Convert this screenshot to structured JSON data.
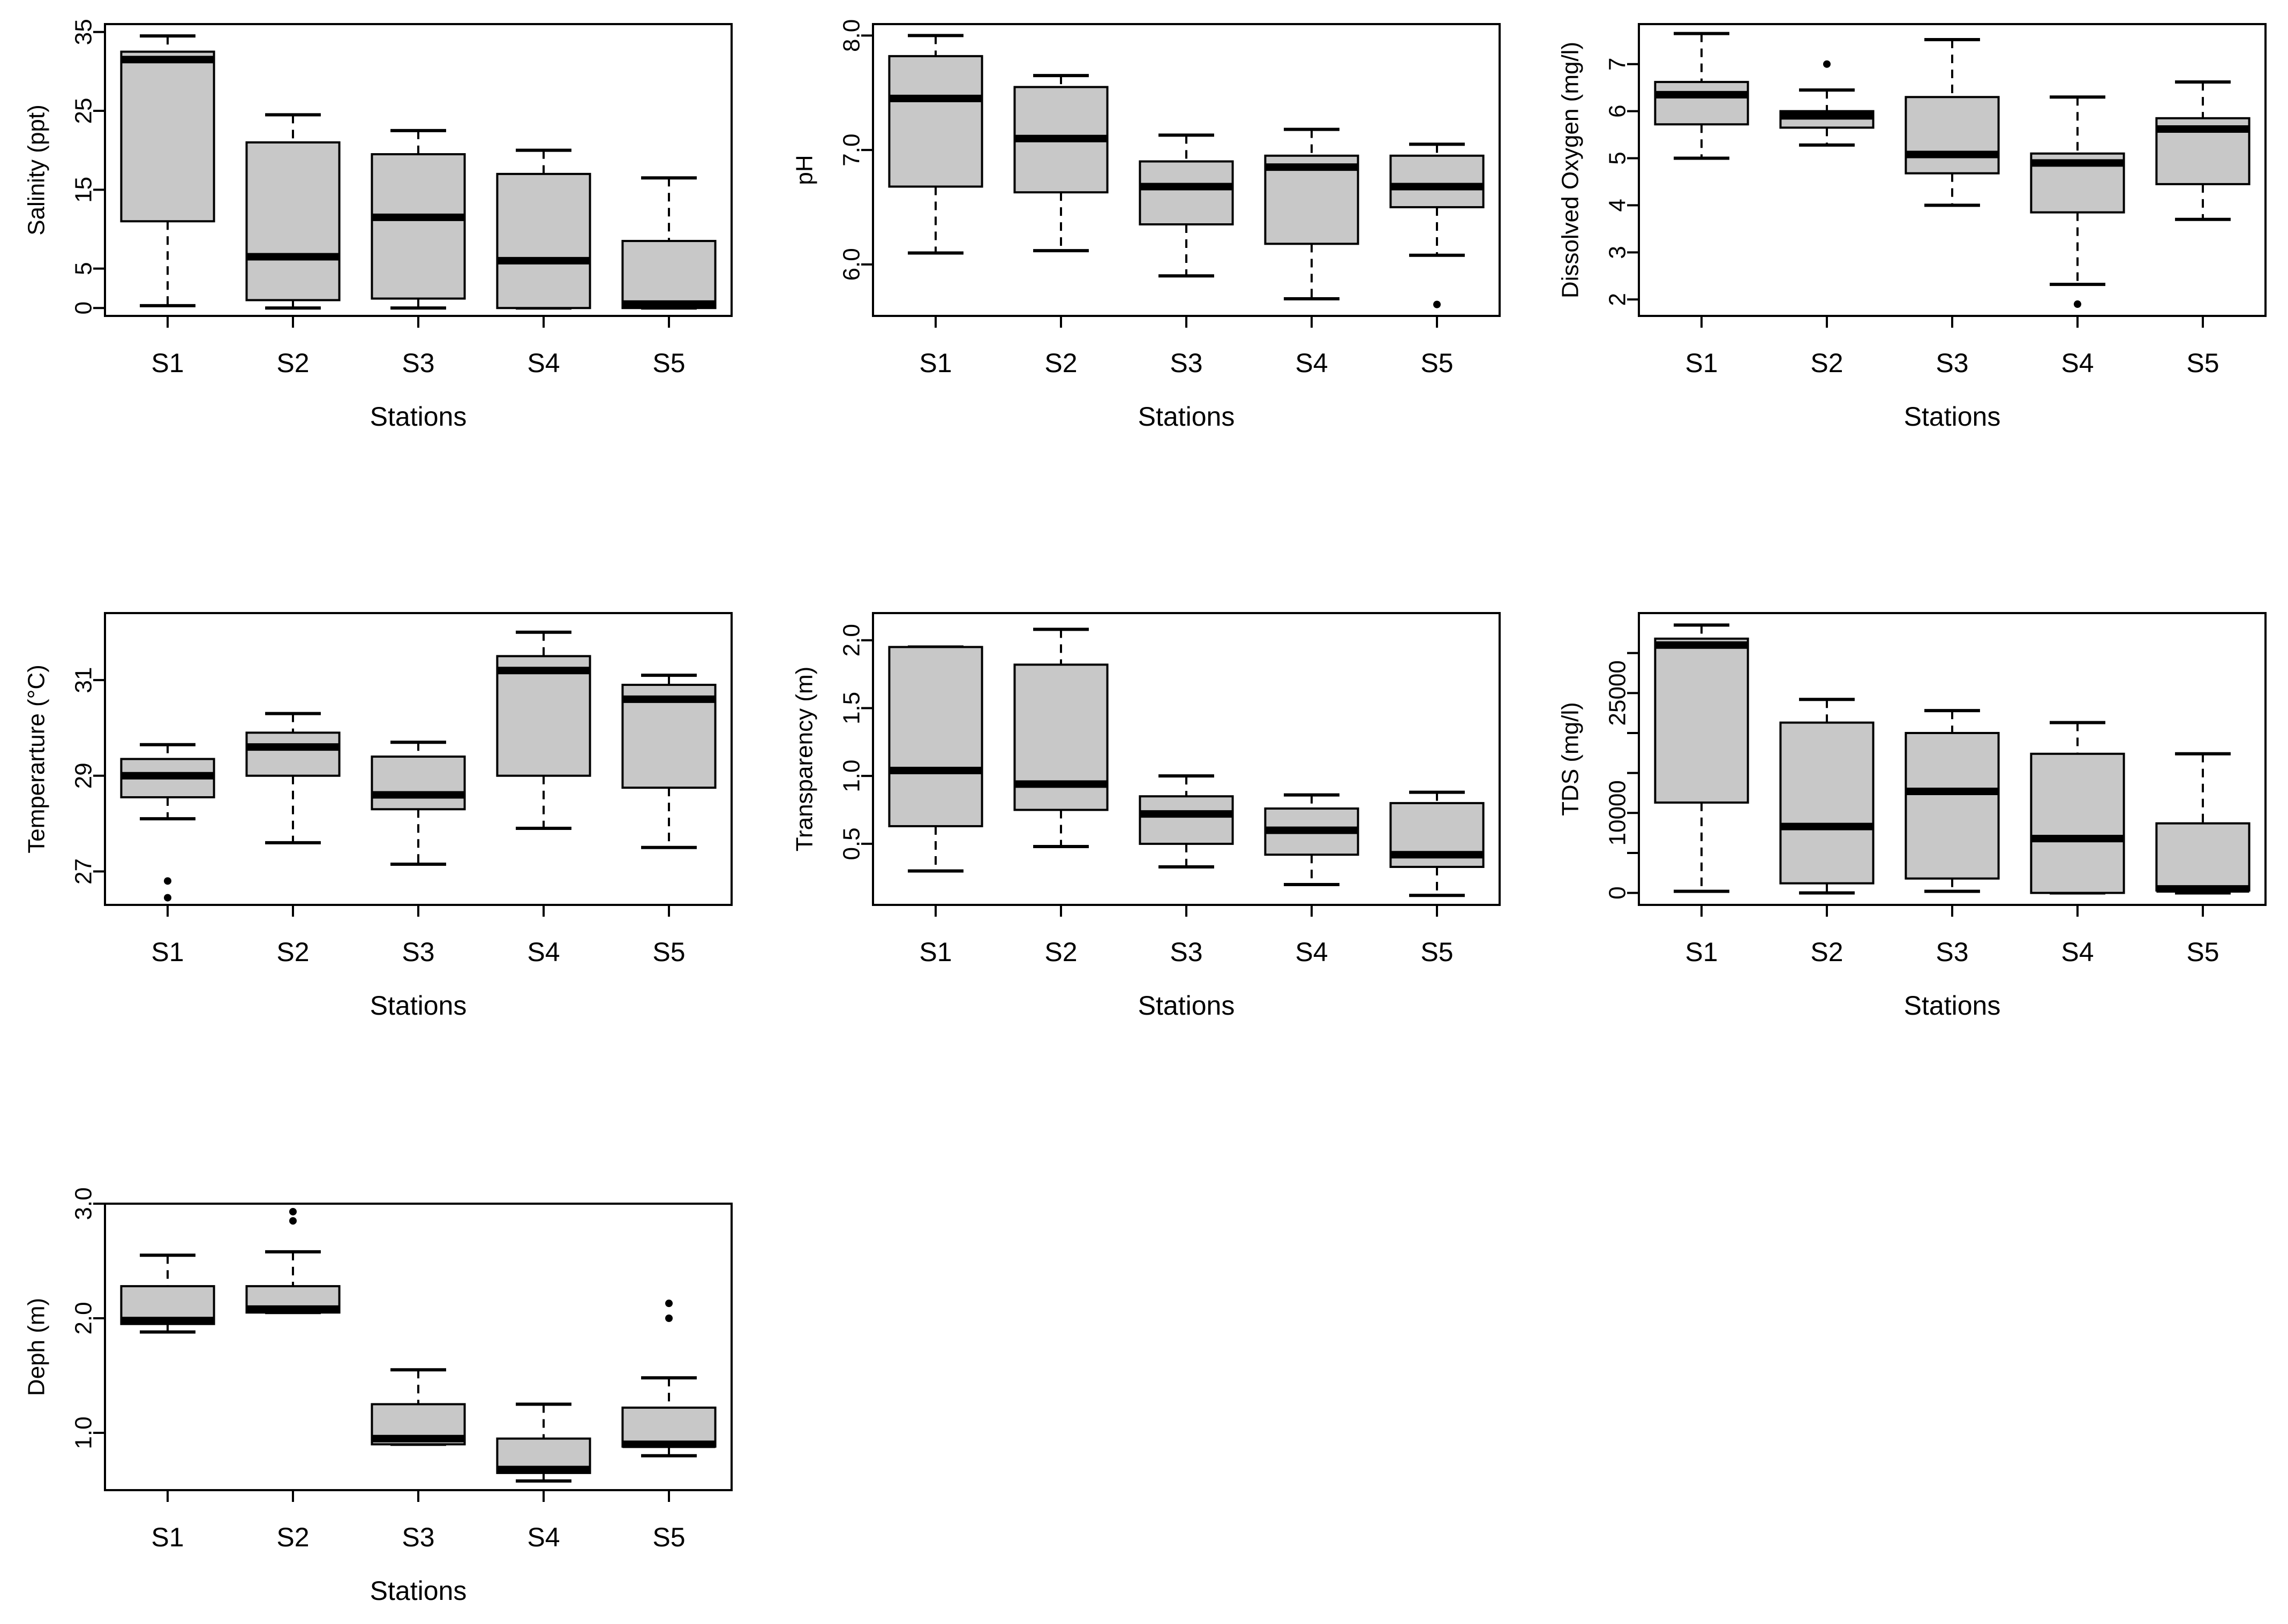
{
  "colors": {
    "box_fill": "#c8c8c8",
    "median": "#000000",
    "stroke": "#000000",
    "background": "#ffffff"
  },
  "chart_data": [
    {
      "type": "boxplot",
      "title": "",
      "xlabel": "Stations",
      "ylabel": "Salinity (ppt)",
      "categories": [
        "S1",
        "S2",
        "S3",
        "S4",
        "S5"
      ],
      "ylim": [
        -1,
        36
      ],
      "yticks": [
        0,
        5,
        15,
        25,
        35
      ],
      "boxes": [
        {
          "whisker_low": 0.3,
          "q1": 11,
          "median": 31.5,
          "q3": 32.5,
          "whisker_high": 34.5,
          "outliers": []
        },
        {
          "whisker_low": 0,
          "q1": 1,
          "median": 6.5,
          "q3": 21,
          "whisker_high": 24.5,
          "outliers": []
        },
        {
          "whisker_low": 0,
          "q1": 1.2,
          "median": 11.5,
          "q3": 19.5,
          "whisker_high": 22.5,
          "outliers": []
        },
        {
          "whisker_low": 0,
          "q1": 0,
          "median": 6,
          "q3": 17,
          "whisker_high": 20,
          "outliers": []
        },
        {
          "whisker_low": 0,
          "q1": 0,
          "median": 0.5,
          "q3": 8.5,
          "whisker_high": 16.5,
          "outliers": []
        }
      ]
    },
    {
      "type": "boxplot",
      "title": "",
      "xlabel": "Stations",
      "ylabel": "pH",
      "categories": [
        "S1",
        "S2",
        "S3",
        "S4",
        "S5"
      ],
      "ylim": [
        5.55,
        8.1
      ],
      "yticks": [
        6.0,
        7.0,
        8.0
      ],
      "tick_labels": [
        "6.0",
        "7.0",
        "8.0"
      ],
      "boxes": [
        {
          "whisker_low": 6.1,
          "q1": 6.68,
          "median": 7.45,
          "q3": 7.82,
          "whisker_high": 8.0,
          "outliers": []
        },
        {
          "whisker_low": 6.12,
          "q1": 6.63,
          "median": 7.1,
          "q3": 7.55,
          "whisker_high": 7.65,
          "outliers": []
        },
        {
          "whisker_low": 5.9,
          "q1": 6.35,
          "median": 6.68,
          "q3": 6.9,
          "whisker_high": 7.13,
          "outliers": []
        },
        {
          "whisker_low": 5.7,
          "q1": 6.18,
          "median": 6.85,
          "q3": 6.95,
          "whisker_high": 7.18,
          "outliers": []
        },
        {
          "whisker_low": 6.08,
          "q1": 6.5,
          "median": 6.68,
          "q3": 6.95,
          "whisker_high": 7.05,
          "outliers": [
            5.65
          ]
        }
      ]
    },
    {
      "type": "boxplot",
      "title": "",
      "xlabel": "Stations",
      "ylabel": "Dissolved Oxygen (mg/l)",
      "categories": [
        "S1",
        "S2",
        "S3",
        "S4",
        "S5"
      ],
      "ylim": [
        1.65,
        7.85
      ],
      "yticks": [
        2,
        3,
        4,
        5,
        6,
        7
      ],
      "boxes": [
        {
          "whisker_low": 5.0,
          "q1": 5.72,
          "median": 6.35,
          "q3": 6.62,
          "whisker_high": 7.65,
          "outliers": []
        },
        {
          "whisker_low": 5.28,
          "q1": 5.65,
          "median": 5.9,
          "q3": 6.0,
          "whisker_high": 6.45,
          "outliers": [
            7.0
          ]
        },
        {
          "whisker_low": 4.0,
          "q1": 4.68,
          "median": 5.08,
          "q3": 6.3,
          "whisker_high": 7.52,
          "outliers": []
        },
        {
          "whisker_low": 2.32,
          "q1": 3.85,
          "median": 4.9,
          "q3": 5.1,
          "whisker_high": 6.3,
          "outliers": [
            1.9
          ]
        },
        {
          "whisker_low": 3.7,
          "q1": 4.45,
          "median": 5.62,
          "q3": 5.85,
          "whisker_high": 6.62,
          "outliers": []
        }
      ]
    },
    {
      "type": "boxplot",
      "title": "",
      "xlabel": "Stations",
      "ylabel": "Temperarture (°C)",
      "categories": [
        "S1",
        "S2",
        "S3",
        "S4",
        "S5"
      ],
      "ylim": [
        26.3,
        32.4
      ],
      "yticks": [
        27,
        29,
        31
      ],
      "boxes": [
        {
          "whisker_low": 28.1,
          "q1": 28.55,
          "median": 29.0,
          "q3": 29.35,
          "whisker_high": 29.65,
          "outliers": [
            26.8,
            26.45
          ]
        },
        {
          "whisker_low": 27.6,
          "q1": 29.0,
          "median": 29.6,
          "q3": 29.9,
          "whisker_high": 30.3,
          "outliers": []
        },
        {
          "whisker_low": 27.15,
          "q1": 28.3,
          "median": 28.6,
          "q3": 29.4,
          "whisker_high": 29.7,
          "outliers": []
        },
        {
          "whisker_low": 27.9,
          "q1": 29.0,
          "median": 31.2,
          "q3": 31.5,
          "whisker_high": 32.0,
          "outliers": []
        },
        {
          "whisker_low": 27.5,
          "q1": 28.75,
          "median": 30.6,
          "q3": 30.9,
          "whisker_high": 31.1,
          "outliers": []
        }
      ]
    },
    {
      "type": "boxplot",
      "title": "",
      "xlabel": "Stations",
      "ylabel": "Transparency (m)",
      "categories": [
        "S1",
        "S2",
        "S3",
        "S4",
        "S5"
      ],
      "ylim": [
        0.05,
        2.2
      ],
      "yticks": [
        0.5,
        1.0,
        1.5,
        2.0
      ],
      "tick_labels": [
        "0.5",
        "1.0",
        "1.5",
        "2.0"
      ],
      "boxes": [
        {
          "whisker_low": 0.3,
          "q1": 0.63,
          "median": 1.04,
          "q3": 1.95,
          "whisker_high": 1.95,
          "outliers": []
        },
        {
          "whisker_low": 0.48,
          "q1": 0.75,
          "median": 0.94,
          "q3": 1.82,
          "whisker_high": 2.08,
          "outliers": []
        },
        {
          "whisker_low": 0.33,
          "q1": 0.5,
          "median": 0.72,
          "q3": 0.85,
          "whisker_high": 1.0,
          "outliers": []
        },
        {
          "whisker_low": 0.2,
          "q1": 0.42,
          "median": 0.6,
          "q3": 0.76,
          "whisker_high": 0.86,
          "outliers": []
        },
        {
          "whisker_low": 0.12,
          "q1": 0.33,
          "median": 0.42,
          "q3": 0.8,
          "whisker_high": 0.88,
          "outliers": []
        }
      ]
    },
    {
      "type": "boxplot",
      "title": "",
      "xlabel": "Stations",
      "ylabel": "TDS (mg/l)",
      "categories": [
        "S1",
        "S2",
        "S3",
        "S4",
        "S5"
      ],
      "ylim": [
        -1500,
        35000
      ],
      "yticks": [
        0,
        5000,
        10000,
        15000,
        20000,
        25000,
        30000
      ],
      "tick_labels": [
        "0",
        "",
        "10000",
        "",
        "",
        "25000",
        ""
      ],
      "boxes": [
        {
          "whisker_low": 200,
          "q1": 11300,
          "median": 31000,
          "q3": 31800,
          "whisker_high": 33500,
          "outliers": []
        },
        {
          "whisker_low": 0,
          "q1": 1200,
          "median": 8300,
          "q3": 21300,
          "whisker_high": 24200,
          "outliers": []
        },
        {
          "whisker_low": 200,
          "q1": 1800,
          "median": 12700,
          "q3": 20000,
          "whisker_high": 22800,
          "outliers": []
        },
        {
          "whisker_low": 0,
          "q1": 0,
          "median": 6800,
          "q3": 17400,
          "whisker_high": 21300,
          "outliers": []
        },
        {
          "whisker_low": 0,
          "q1": 300,
          "median": 500,
          "q3": 8700,
          "whisker_high": 17400,
          "outliers": []
        }
      ]
    },
    {
      "type": "boxplot",
      "title": "",
      "xlabel": "Stations",
      "ylabel": "Deph (m)",
      "categories": [
        "S1",
        "S2",
        "S3",
        "S4",
        "S5"
      ],
      "ylim": [
        0.5,
        3.0
      ],
      "yticks": [
        1.0,
        2.0,
        3.0
      ],
      "tick_labels": [
        "1.0",
        "2.0",
        "3.0"
      ],
      "boxes": [
        {
          "whisker_low": 1.88,
          "q1": 1.95,
          "median": 1.98,
          "q3": 2.28,
          "whisker_high": 2.55,
          "outliers": []
        },
        {
          "whisker_low": 2.05,
          "q1": 2.05,
          "median": 2.08,
          "q3": 2.28,
          "whisker_high": 2.58,
          "outliers": [
            2.85,
            2.93
          ]
        },
        {
          "whisker_low": 0.9,
          "q1": 0.9,
          "median": 0.95,
          "q3": 1.25,
          "whisker_high": 1.55,
          "outliers": []
        },
        {
          "whisker_low": 0.58,
          "q1": 0.65,
          "median": 0.68,
          "q3": 0.95,
          "whisker_high": 1.25,
          "outliers": []
        },
        {
          "whisker_low": 0.8,
          "q1": 0.88,
          "median": 0.9,
          "q3": 1.22,
          "whisker_high": 1.48,
          "outliers": [
            2.0,
            2.13
          ]
        }
      ]
    }
  ]
}
